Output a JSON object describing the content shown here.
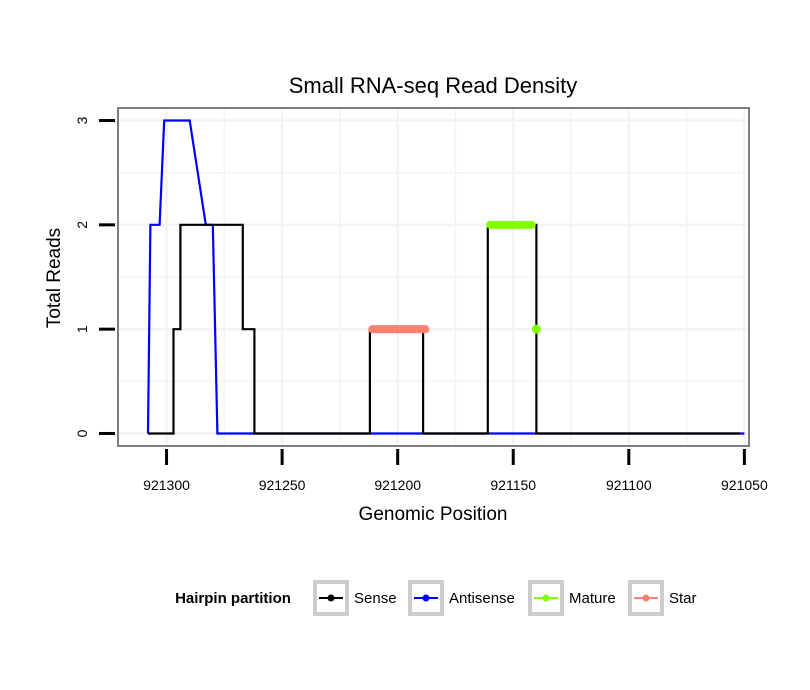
{
  "chart_data": {
    "type": "line",
    "title": "Small RNA-seq Read Density",
    "xlabel": "Genomic Position",
    "ylabel": "Total Reads",
    "x_reversed": true,
    "xlim": [
      921321,
      921048
    ],
    "ylim": [
      -0.12,
      3.12
    ],
    "xticks": [
      921300,
      921250,
      921200,
      921150,
      921100,
      921050
    ],
    "yticks": [
      0,
      1,
      2,
      3
    ],
    "grid": true,
    "legend": {
      "title": "Hairpin partition",
      "placement": "bottom",
      "entries": [
        "Sense",
        "Antisense",
        "Mature",
        "Star"
      ]
    },
    "series": [
      {
        "name": "Sense",
        "color": "#000000",
        "x": [
          921308,
          921297,
          921297,
          921296,
          921296,
          921294,
          921294,
          921272,
          921272,
          921267,
          921267,
          921262,
          921262,
          921212,
          921212,
          921189,
          921189,
          921161,
          921161,
          921143,
          921143,
          921140,
          921140,
          921140,
          921140,
          921052
        ],
        "y": [
          0,
          0,
          1,
          1,
          1,
          1,
          2,
          2,
          2,
          2,
          1,
          1,
          0,
          0,
          1,
          1,
          0,
          0,
          2,
          2,
          2,
          2,
          1,
          1,
          0,
          0
        ]
      },
      {
        "name": "Antisense",
        "color": "#0000ff",
        "x": [
          921308,
          921307,
          921303,
          921301,
          921290,
          921283,
          921280,
          921278,
          921050
        ],
        "y": [
          0,
          2,
          2,
          3,
          3,
          2,
          2,
          0,
          0
        ]
      },
      {
        "name": "Mature",
        "color": "#7fff00",
        "segments": [
          {
            "x": [
              921160,
              921142
            ],
            "y": [
              2,
              2
            ]
          },
          {
            "x": [
              921140,
              921140
            ],
            "y": [
              1,
              1
            ]
          }
        ]
      },
      {
        "name": "Star",
        "color": "#fa8072",
        "segments": [
          {
            "x": [
              921211,
              921188
            ],
            "y": [
              1,
              1
            ]
          }
        ]
      }
    ]
  }
}
